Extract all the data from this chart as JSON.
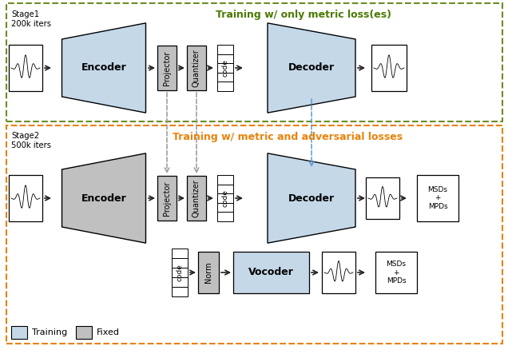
{
  "fig_width": 6.36,
  "fig_height": 4.38,
  "dpi": 100,
  "training_color": "#c5d8e8",
  "fixed_color_light": "#c0c0c0",
  "stage1_border_color": "#6b8e23",
  "stage2_border_color": "#e8820a",
  "stage1_title_color": "#4a7a00",
  "stage2_title_color": "#e8820a",
  "stage1_title": "Training w/ only metric loss(es)",
  "stage2_title": "Training w/ metric and adversarial losses",
  "stage1_label": "Stage1\n200k iters",
  "stage2_label": "Stage2\n500k iters",
  "legend_training_label": "Training",
  "legend_fixed_label": "Fixed",
  "dashed_gray": "#999999",
  "dashed_blue": "#5b9bd5",
  "arrow_color": "#222222"
}
